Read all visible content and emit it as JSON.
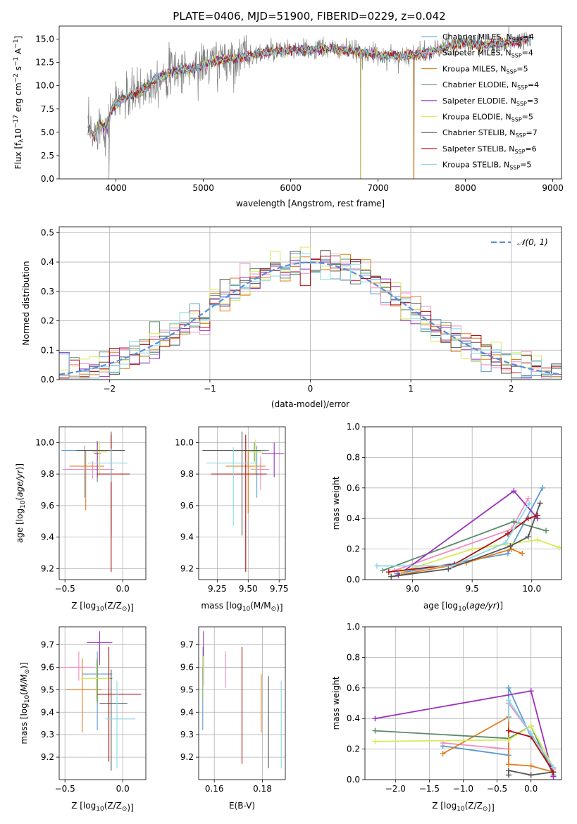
{
  "title": "PLATE=0406, MJD=51900, FIBERID=0229, z=0.042",
  "colors": {
    "Chabrier MILES": "#5b9bd5",
    "Salpeter MILES": "#f08cc0",
    "Kroupa MILES": "#e07b1f",
    "Chabrier ELODIE": "#5b8a6b",
    "Salpeter ELODIE": "#9b30c0",
    "Kroupa ELODIE": "#d7ea5a",
    "Chabrier STELIB": "#555555",
    "Salpeter STELIB": "#b01010",
    "Kroupa STELIB": "#8ad8e6",
    "data": "#808080",
    "normal": "#5b8dd9"
  },
  "chart_data": [
    {
      "type": "line",
      "id": "spectrum",
      "xlabel": "wavelength [Angstrom, rest frame]",
      "ylabel": "Flux [f_λ 10^-17 erg cm^-2 s^-1 A^-1]",
      "xlim": [
        3350,
        9100
      ],
      "ylim": [
        0,
        16.4
      ],
      "xticks": [
        4000,
        5000,
        6000,
        7000,
        8000,
        9000
      ],
      "yticks": [
        0.0,
        2.5,
        5.0,
        7.5,
        10.0,
        12.5,
        15.0
      ],
      "grid": false,
      "legend_position": "top-right",
      "legend": [
        {
          "label": "Chabrier MILES, N",
          "sub": "SSP",
          "suffix": "=4",
          "key": "Chabrier MILES"
        },
        {
          "label": "Salpeter MILES, N",
          "sub": "SSP",
          "suffix": "=4",
          "key": "Salpeter MILES"
        },
        {
          "label": "Kroupa MILES, N",
          "sub": "SSP",
          "suffix": "=5",
          "key": "Kroupa MILES"
        },
        {
          "label": "Chabrier ELODIE, N",
          "sub": "SSP",
          "suffix": "=4",
          "key": "Chabrier ELODIE"
        },
        {
          "label": "Salpeter ELODIE, N",
          "sub": "SSP",
          "suffix": "=3",
          "key": "Salpeter ELODIE"
        },
        {
          "label": "Kroupa ELODIE, N",
          "sub": "SSP",
          "suffix": "=5",
          "key": "Kroupa ELODIE"
        },
        {
          "label": "Chabrier STELIB, N",
          "sub": "SSP",
          "suffix": "=7",
          "key": "Chabrier STELIB"
        },
        {
          "label": "Salpeter STELIB, N",
          "sub": "SSP",
          "suffix": "=6",
          "key": "Salpeter STELIB"
        },
        {
          "label": "Kroupa STELIB, N",
          "sub": "SSP",
          "suffix": "=5",
          "key": "Kroupa STELIB"
        }
      ],
      "continuum": [
        [
          3680,
          5.5
        ],
        [
          3750,
          4.5
        ],
        [
          3800,
          6.0
        ],
        [
          3900,
          5.5
        ],
        [
          3950,
          7.5
        ],
        [
          4050,
          8.5
        ],
        [
          4150,
          8.8
        ],
        [
          4300,
          9.6
        ],
        [
          4500,
          11.0
        ],
        [
          4700,
          11.7
        ],
        [
          4860,
          11.8
        ],
        [
          5000,
          12.3
        ],
        [
          5200,
          12.8
        ],
        [
          5400,
          13.0
        ],
        [
          5600,
          13.3
        ],
        [
          5800,
          13.7
        ],
        [
          6000,
          13.8
        ],
        [
          6200,
          13.8
        ],
        [
          6400,
          14.0
        ],
        [
          6600,
          13.8
        ],
        [
          6800,
          13.6
        ],
        [
          7000,
          13.3
        ],
        [
          7200,
          13.2
        ],
        [
          7400,
          13.3
        ],
        [
          7600,
          13.6
        ],
        [
          7800,
          14.3
        ],
        [
          8000,
          14.6
        ],
        [
          8200,
          14.4
        ],
        [
          8400,
          14.5
        ],
        [
          8600,
          14.8
        ],
        [
          8750,
          15.0
        ]
      ],
      "data_dips": [
        [
          3920,
          0.0
        ],
        [
          6800,
          0.0
        ],
        [
          7410,
          0.0
        ]
      ]
    },
    {
      "type": "line",
      "id": "residuals",
      "xlabel": "(data-model)/error",
      "ylabel": "Normed distribution",
      "xlim": [
        -2.5,
        2.5
      ],
      "ylim": [
        0,
        0.52
      ],
      "xticks": [
        -2,
        -1,
        0,
        1,
        2
      ],
      "yticks": [
        0.0,
        0.1,
        0.2,
        0.3,
        0.4,
        0.5
      ],
      "grid": true,
      "legend_position": "top-right",
      "legend": [
        {
          "label": "𝒩(0, 1)",
          "style": "dashed",
          "key": "normal"
        }
      ],
      "histogram": {
        "x_min": -2.5,
        "bin_width": 0.1,
        "n_bins": 50
      }
    },
    {
      "type": "scatter",
      "id": "age-vs-Z",
      "xlabel": "Z [log10(Z/Z⊙)]",
      "ylabel": "age  [log10(age/yr)]",
      "xlim": [
        -0.55,
        0.2
      ],
      "ylim": [
        9.13,
        10.1
      ],
      "xticks": [
        -0.5,
        0.0
      ],
      "yticks": [
        9.2,
        9.4,
        9.6,
        9.8,
        10.0
      ],
      "grid": true,
      "points": [
        {
          "key": "Chabrier MILES",
          "x": -0.33,
          "xerr": [
            0.2,
            0.2
          ],
          "y": 9.95,
          "yerr": [
            0.3,
            0.03
          ]
        },
        {
          "key": "Salpeter MILES",
          "x": -0.26,
          "xerr": [
            0.26,
            0.18
          ],
          "y": 9.83,
          "yerr": [
            0.06,
            0.05
          ]
        },
        {
          "key": "Kroupa MILES",
          "x": -0.32,
          "xerr": [
            0.14,
            0.16
          ],
          "y": 9.85,
          "yerr": [
            0.28,
            0.1
          ]
        },
        {
          "key": "Chabrier ELODIE",
          "x": -0.22,
          "xerr": [
            0.1,
            0.1
          ],
          "y": 9.95,
          "yerr": [
            0.2,
            0.05
          ]
        },
        {
          "key": "Salpeter ELODIE",
          "x": -0.22,
          "xerr": [
            0.03,
            0.03
          ],
          "y": 9.93,
          "yerr": [
            0.15,
            0.08
          ]
        },
        {
          "key": "Kroupa ELODIE",
          "x": -0.2,
          "xerr": [
            0.06,
            0.06
          ],
          "y": 9.94,
          "yerr": [
            0.15,
            0.07
          ]
        },
        {
          "key": "Chabrier STELIB",
          "x": -0.1,
          "xerr": [
            0.3,
            0.12
          ],
          "y": 9.95,
          "yerr": [
            0.54,
            0.12
          ]
        },
        {
          "key": "Salpeter STELIB",
          "x": -0.1,
          "xerr": [
            0.12,
            0.16
          ],
          "y": 9.8,
          "yerr": [
            0.62,
            0.25
          ]
        },
        {
          "key": "Kroupa STELIB",
          "x": -0.1,
          "xerr": [
            0.2,
            0.14
          ],
          "y": 9.87,
          "yerr": [
            0.12,
            0.09
          ]
        }
      ]
    },
    {
      "type": "scatter",
      "id": "age-vs-mass",
      "xlabel": "mass [log10(M/M⊙)]",
      "ylabel": "",
      "xlim": [
        9.1,
        9.8
      ],
      "ylim": [
        9.13,
        10.1
      ],
      "xticks": [
        9.25,
        9.5,
        9.75
      ],
      "yticks": [
        9.2,
        9.4,
        9.6,
        9.8,
        10.0
      ],
      "grid": true,
      "points": [
        {
          "key": "Chabrier MILES",
          "x": 9.57,
          "xerr": [
            0.2,
            0.1
          ],
          "y": 9.95,
          "yerr": [
            0.3,
            0.03
          ]
        },
        {
          "key": "Salpeter MILES",
          "x": 9.6,
          "xerr": [
            0.08,
            0.07
          ],
          "y": 9.83,
          "yerr": [
            0.13,
            0.08
          ]
        },
        {
          "key": "Kroupa MILES",
          "x": 9.5,
          "xerr": [
            0.18,
            0.14
          ],
          "y": 9.85,
          "yerr": [
            0.3,
            0.1
          ]
        },
        {
          "key": "Chabrier ELODIE",
          "x": 9.55,
          "xerr": [
            0.04,
            0.1
          ],
          "y": 9.95,
          "yerr": [
            0.07,
            0.05
          ]
        },
        {
          "key": "Salpeter ELODIE",
          "x": 9.71,
          "xerr": [
            0.1,
            0.08
          ],
          "y": 9.93,
          "yerr": [
            0.15,
            0.07
          ]
        },
        {
          "key": "Kroupa ELODIE",
          "x": 9.56,
          "xerr": [
            0.06,
            0.06
          ],
          "y": 9.94,
          "yerr": [
            0.14,
            0.08
          ]
        },
        {
          "key": "Chabrier STELIB",
          "x": 9.45,
          "xerr": [
            0.32,
            0.15
          ],
          "y": 9.95,
          "yerr": [
            0.54,
            0.12
          ]
        },
        {
          "key": "Salpeter STELIB",
          "x": 9.48,
          "xerr": [
            0.28,
            0.17
          ],
          "y": 9.8,
          "yerr": [
            0.62,
            0.25
          ]
        },
        {
          "key": "Kroupa STELIB",
          "x": 9.38,
          "xerr": [
            0.22,
            0.19
          ],
          "y": 9.87,
          "yerr": [
            0.4,
            0.1
          ]
        }
      ]
    },
    {
      "type": "line",
      "id": "mass-weight-vs-age",
      "xlabel": "age  [log10(age/yr)]",
      "ylabel": "mass weight",
      "xlim": [
        8.6,
        10.25
      ],
      "ylim": [
        0,
        1.0
      ],
      "xticks": [
        9.0,
        9.5,
        10.0
      ],
      "yticks": [
        0.0,
        0.2,
        0.4,
        0.6,
        0.8,
        1.0
      ],
      "grid": true,
      "series": [
        {
          "key": "Chabrier MILES",
          "x": [
            8.87,
            9.8,
            10.09
          ],
          "y": [
            0.04,
            0.17,
            0.6
          ]
        },
        {
          "key": "Salpeter MILES",
          "x": [
            8.85,
            9.83,
            9.97
          ],
          "y": [
            0.06,
            0.33,
            0.53
          ]
        },
        {
          "key": "Kroupa MILES",
          "x": [
            8.88,
            9.45,
            9.83,
            9.92
          ],
          "y": [
            0.03,
            0.11,
            0.2,
            0.17
          ]
        },
        {
          "key": "Chabrier ELODIE",
          "x": [
            8.75,
            9.85,
            10.12
          ],
          "y": [
            0.06,
            0.38,
            0.32
          ]
        },
        {
          "key": "Salpeter ELODIE",
          "x": [
            8.88,
            9.85,
            10.05
          ],
          "y": [
            0.03,
            0.58,
            0.4
          ]
        },
        {
          "key": "Kroupa ELODIE",
          "x": [
            8.9,
            9.5,
            10.05,
            10.23
          ],
          "y": [
            0.05,
            0.2,
            0.26,
            0.21
          ]
        },
        {
          "key": "Chabrier STELIB",
          "x": [
            8.82,
            9.3,
            9.82,
            9.97,
            10.07
          ],
          "y": [
            0.02,
            0.07,
            0.22,
            0.28,
            0.5
          ]
        },
        {
          "key": "Salpeter STELIB",
          "x": [
            8.8,
            9.35,
            9.8,
            9.97,
            10.05
          ],
          "y": [
            0.05,
            0.1,
            0.3,
            0.4,
            0.42
          ]
        },
        {
          "key": "Kroupa STELIB",
          "x": [
            8.7,
            9.33,
            9.78,
            9.98
          ],
          "y": [
            0.09,
            0.09,
            0.24,
            0.5
          ]
        }
      ]
    },
    {
      "type": "scatter",
      "id": "mass-vs-Z",
      "xlabel": "Z [log10(Z/Z⊙)]",
      "ylabel": "mass [log10(M/M⊙)]",
      "xlim": [
        -0.55,
        0.2
      ],
      "ylim": [
        9.1,
        9.78
      ],
      "xticks": [
        -0.5,
        0.0
      ],
      "yticks": [
        9.2,
        9.3,
        9.4,
        9.5,
        9.6,
        9.7
      ],
      "grid": true,
      "points": [
        {
          "key": "Chabrier MILES",
          "x": -0.22,
          "xerr": [
            0.13,
            0.13
          ],
          "y": 9.57,
          "yerr": [
            0.25,
            0.1
          ]
        },
        {
          "key": "Salpeter MILES",
          "x": -0.38,
          "xerr": [
            0.16,
            0.14
          ],
          "y": 9.6,
          "yerr": [
            0.06,
            0.07
          ]
        },
        {
          "key": "Kroupa MILES",
          "x": -0.35,
          "xerr": [
            0.14,
            0.17
          ],
          "y": 9.5,
          "yerr": [
            0.19,
            0.14
          ]
        },
        {
          "key": "Chabrier ELODIE",
          "x": -0.22,
          "xerr": [
            0.12,
            0.13
          ],
          "y": 9.55,
          "yerr": [
            0.11,
            0.09
          ]
        },
        {
          "key": "Salpeter ELODIE",
          "x": -0.2,
          "xerr": [
            0.11,
            0.11
          ],
          "y": 9.71,
          "yerr": [
            0.1,
            0.05
          ]
        },
        {
          "key": "Kroupa ELODIE",
          "x": -0.23,
          "xerr": [
            0.13,
            0.12
          ],
          "y": 9.55,
          "yerr": [
            0.1,
            0.08
          ]
        },
        {
          "key": "Chabrier STELIB",
          "x": -0.1,
          "xerr": [
            0.1,
            0.14
          ],
          "y": 9.44,
          "yerr": [
            0.3,
            0.15
          ]
        },
        {
          "key": "Salpeter STELIB",
          "x": -0.12,
          "xerr": [
            0.1,
            0.28
          ],
          "y": 9.48,
          "yerr": [
            0.3,
            0.21
          ]
        },
        {
          "key": "Kroupa STELIB",
          "x": -0.05,
          "xerr": [
            0.1,
            0.16
          ],
          "y": 9.37,
          "yerr": [
            0.22,
            0.17
          ]
        }
      ]
    },
    {
      "type": "scatter",
      "id": "mass-vs-EBV",
      "xlabel": "E(B-V)",
      "ylabel": "",
      "xlim": [
        0.1535,
        0.1895
      ],
      "ylim": [
        9.1,
        9.78
      ],
      "xticks": [
        0.16,
        0.18
      ],
      "yticks": [
        9.2,
        9.3,
        9.4,
        9.5,
        9.6,
        9.7
      ],
      "grid": true,
      "points": [
        {
          "key": "Chabrier MILES",
          "x": 0.1552,
          "y": 9.4,
          "yerr": [
            0.08,
            0.2
          ]
        },
        {
          "key": "Salpeter MILES",
          "x": 0.1647,
          "y": 9.59,
          "yerr": [
            0.08,
            0.08
          ]
        },
        {
          "key": "Kroupa MILES",
          "x": 0.1795,
          "y": 9.44,
          "yerr": [
            0.13,
            0.13
          ]
        },
        {
          "key": "Chabrier ELODIE",
          "x": 0.1553,
          "y": 9.62,
          "yerr": [
            0.07,
            0.07
          ]
        },
        {
          "key": "Salpeter ELODIE",
          "x": 0.1555,
          "y": 9.6,
          "yerr": [
            0.08,
            0.16
          ]
        },
        {
          "key": "Kroupa ELODIE",
          "x": 0.1554,
          "y": 9.55,
          "yerr": [
            0.1,
            0.1
          ]
        },
        {
          "key": "Chabrier STELIB",
          "x": 0.1825,
          "y": 9.36,
          "yerr": [
            0.21,
            0.2
          ]
        },
        {
          "key": "Salpeter STELIB",
          "x": 0.1715,
          "y": 9.43,
          "yerr": [
            0.26,
            0.26
          ]
        },
        {
          "key": "Kroupa STELIB",
          "x": 0.1878,
          "y": 9.35,
          "yerr": [
            0.2,
            0.19
          ]
        }
      ]
    },
    {
      "type": "line",
      "id": "mass-weight-vs-Z",
      "xlabel": "Z [log10(Z/Z⊙)]",
      "ylabel": "mass weight",
      "xlim": [
        -2.45,
        0.45
      ],
      "ylim": [
        0,
        1.0
      ],
      "xticks": [
        -2.0,
        -1.5,
        -1.0,
        -0.5,
        0.0
      ],
      "yticks": [
        0.0,
        0.2,
        0.4,
        0.6,
        0.8,
        1.0
      ],
      "grid": true,
      "series": [
        {
          "key": "Chabrier MILES",
          "x": [
            -1.3,
            -0.33,
            -0.33,
            0.0,
            0.33
          ],
          "y": [
            0.22,
            0.16,
            0.6,
            0.28,
            0.05
          ]
        },
        {
          "key": "Salpeter MILES",
          "x": [
            -1.3,
            -0.33,
            -0.33,
            0.0,
            0.33
          ],
          "y": [
            0.24,
            0.2,
            0.5,
            0.3,
            0.07
          ]
        },
        {
          "key": "Kroupa MILES",
          "x": [
            -1.3,
            -0.33,
            -0.33,
            0.0,
            0.33
          ],
          "y": [
            0.17,
            0.41,
            0.1,
            0.09,
            0.05
          ]
        },
        {
          "key": "Chabrier ELODIE",
          "x": [
            -2.3,
            -0.33,
            0.0,
            0.33
          ],
          "y": [
            0.32,
            0.27,
            0.35,
            0.03
          ]
        },
        {
          "key": "Salpeter ELODIE",
          "x": [
            -2.3,
            0.0,
            0.33
          ],
          "y": [
            0.4,
            0.58,
            0.02
          ]
        },
        {
          "key": "Kroupa ELODIE",
          "x": [
            -2.3,
            -0.33,
            0.0,
            0.33
          ],
          "y": [
            0.25,
            0.26,
            0.35,
            0.08
          ]
        },
        {
          "key": "Chabrier STELIB",
          "x": [
            -0.33,
            -0.33,
            0.0,
            0.33
          ],
          "y": [
            0.03,
            0.06,
            0.03,
            0.05
          ]
        },
        {
          "key": "Salpeter STELIB",
          "x": [
            -0.33,
            0.0,
            0.33
          ],
          "y": [
            0.32,
            0.28,
            0.05
          ]
        },
        {
          "key": "Kroupa STELIB",
          "x": [
            -0.33,
            -0.33,
            0.0,
            0.33
          ],
          "y": [
            0.4,
            0.52,
            0.3,
            0.08
          ]
        }
      ]
    }
  ]
}
